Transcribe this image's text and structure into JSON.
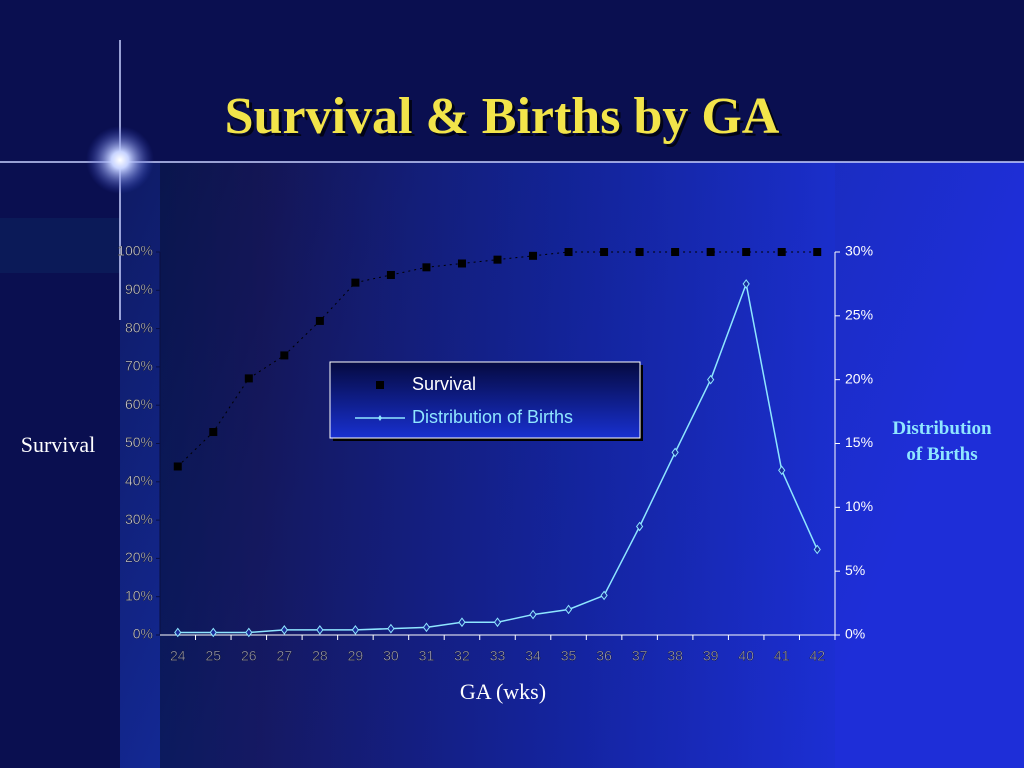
{
  "chart_data": {
    "type": "line",
    "title": "Survival & Births by GA",
    "x_label": "GA (wks)",
    "y_label": "Survival",
    "y2_label": "Distribution of Births",
    "categories": [
      "24",
      "25",
      "26",
      "27",
      "28",
      "29",
      "30",
      "31",
      "32",
      "33",
      "34",
      "35",
      "36",
      "37",
      "38",
      "39",
      "40",
      "41",
      "42"
    ],
    "series": [
      {
        "name": "Survival",
        "color": "#000000",
        "marker": "square",
        "linestyle": "dotted",
        "values": [
          44,
          53,
          67,
          73,
          82,
          92,
          94,
          96,
          97,
          98,
          99,
          100,
          100,
          100,
          100,
          100,
          100,
          100,
          100
        ]
      },
      {
        "name": "Distribution of Births",
        "color": "#8fe6ff",
        "marker": "diamond",
        "linestyle": "solid",
        "axis": "y2",
        "values": [
          0.2,
          0.2,
          0.2,
          0.4,
          0.4,
          0.4,
          0.5,
          0.6,
          1.0,
          1.0,
          1.6,
          2.0,
          3.1,
          8.5,
          14.3,
          20.0,
          27.5,
          12.9,
          6.7
        ]
      }
    ],
    "ylim": [
      0,
      100
    ],
    "yticks": [
      {
        "value": 0,
        "label": "0%"
      },
      {
        "value": 10,
        "label": "10%"
      },
      {
        "value": 20,
        "label": "20%"
      },
      {
        "value": 30,
        "label": "30%"
      },
      {
        "value": 40,
        "label": "40%"
      },
      {
        "value": 50,
        "label": "50%"
      },
      {
        "value": 60,
        "label": "60%"
      },
      {
        "value": 70,
        "label": "70%"
      },
      {
        "value": 80,
        "label": "80%"
      },
      {
        "value": 90,
        "label": "90%"
      },
      {
        "value": 100,
        "label": "100%"
      }
    ],
    "y2lim": [
      0,
      30
    ],
    "y2ticks": [
      {
        "value": 0,
        "label": "0%"
      },
      {
        "value": 5,
        "label": "5%"
      },
      {
        "value": 10,
        "label": "10%"
      },
      {
        "value": 15,
        "label": "15%"
      },
      {
        "value": 20,
        "label": "20%"
      },
      {
        "value": 25,
        "label": "25%"
      },
      {
        "value": 30,
        "label": "30%"
      }
    ]
  }
}
